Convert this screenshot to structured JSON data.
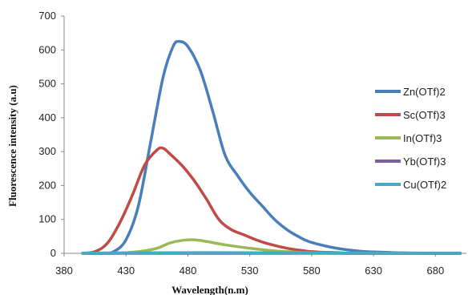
{
  "chart_data": {
    "type": "line",
    "xlabel": "Wavelength(n.m)",
    "ylabel": "Fluorescence intensity (a.u)",
    "xlim": [
      380,
      705
    ],
    "ylim": [
      0,
      700
    ],
    "x_ticks": [
      380,
      430,
      480,
      530,
      580,
      630,
      680
    ],
    "y_ticks": [
      0,
      100,
      200,
      300,
      400,
      500,
      600,
      700
    ],
    "grid": false,
    "legend_position": "right",
    "series": [
      {
        "name": "Zn(OTf)2",
        "color": "#4a7ebb",
        "points": [
          [
            395,
            0
          ],
          [
            410,
            0
          ],
          [
            420,
            5
          ],
          [
            430,
            40
          ],
          [
            440,
            140
          ],
          [
            450,
            330
          ],
          [
            460,
            520
          ],
          [
            468,
            610
          ],
          [
            473,
            625
          ],
          [
            480,
            610
          ],
          [
            490,
            540
          ],
          [
            500,
            420
          ],
          [
            510,
            290
          ],
          [
            520,
            230
          ],
          [
            530,
            180
          ],
          [
            540,
            140
          ],
          [
            550,
            100
          ],
          [
            560,
            70
          ],
          [
            570,
            48
          ],
          [
            580,
            32
          ],
          [
            600,
            15
          ],
          [
            620,
            6
          ],
          [
            640,
            3
          ],
          [
            660,
            1
          ],
          [
            700,
            0
          ]
        ]
      },
      {
        "name": "Sc(OTf)3",
        "color": "#be4b48",
        "points": [
          [
            395,
            0
          ],
          [
            405,
            5
          ],
          [
            415,
            30
          ],
          [
            425,
            90
          ],
          [
            435,
            170
          ],
          [
            445,
            260
          ],
          [
            455,
            305
          ],
          [
            460,
            310
          ],
          [
            465,
            295
          ],
          [
            475,
            260
          ],
          [
            485,
            215
          ],
          [
            495,
            160
          ],
          [
            505,
            100
          ],
          [
            515,
            70
          ],
          [
            525,
            55
          ],
          [
            535,
            40
          ],
          [
            545,
            28
          ],
          [
            560,
            15
          ],
          [
            580,
            5
          ],
          [
            600,
            2
          ],
          [
            620,
            0
          ],
          [
            700,
            0
          ]
        ]
      },
      {
        "name": "In(OTf)3",
        "color": "#98b954",
        "points": [
          [
            395,
            0
          ],
          [
            420,
            0
          ],
          [
            440,
            5
          ],
          [
            455,
            15
          ],
          [
            465,
            30
          ],
          [
            475,
            38
          ],
          [
            485,
            40
          ],
          [
            495,
            35
          ],
          [
            510,
            25
          ],
          [
            530,
            15
          ],
          [
            550,
            7
          ],
          [
            570,
            3
          ],
          [
            590,
            1
          ],
          [
            610,
            0
          ],
          [
            700,
            0
          ]
        ]
      },
      {
        "name": "Yb(OTf)3",
        "color": "#7d60a0",
        "points": [
          [
            395,
            0
          ],
          [
            700,
            0
          ]
        ]
      },
      {
        "name": "Cu(OTf)2",
        "color": "#46aac5",
        "points": [
          [
            395,
            1
          ],
          [
            500,
            2
          ],
          [
            600,
            1
          ],
          [
            700,
            1
          ]
        ]
      }
    ]
  }
}
